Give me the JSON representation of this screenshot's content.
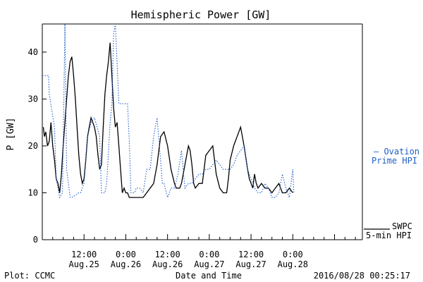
{
  "chart_data": {
    "type": "line",
    "title": "Hemispheric Power [GW]",
    "xlabel": "Date and Time",
    "ylabel": "P [GW]",
    "ylim": [
      0,
      46
    ],
    "yticks": [
      0,
      10,
      20,
      30,
      40
    ],
    "xlim_hours": [
      0,
      92
    ],
    "xticks": [
      {
        "hour": 12,
        "time": "12:00",
        "date": "Aug.25"
      },
      {
        "hour": 24,
        "time": "0:00",
        "date": "Aug.26"
      },
      {
        "hour": 36,
        "time": "12:00",
        "date": "Aug.26"
      },
      {
        "hour": 48,
        "time": "0:00",
        "date": "Aug.27"
      },
      {
        "hour": 60,
        "time": "12:00",
        "date": "Aug.27"
      },
      {
        "hour": 72,
        "time": "0:00",
        "date": "Aug.28"
      }
    ],
    "grid": false,
    "legend_placement": "right",
    "series": [
      {
        "name": "SWPC 5-min HPI",
        "style": "solid",
        "color": "#000000",
        "x": [
          0.3,
          0.6,
          1.0,
          1.5,
          2.0,
          2.5,
          3.0,
          3.5,
          4.0,
          4.5,
          5.0,
          5.5,
          6.0,
          6.5,
          7.0,
          7.5,
          8.0,
          8.5,
          9.0,
          9.5,
          10.0,
          10.5,
          11.0,
          11.5,
          12.0,
          12.5,
          13.0,
          13.5,
          14.0,
          14.5,
          15.0,
          15.5,
          16.0,
          16.5,
          17.0,
          17.5,
          18.0,
          18.5,
          19.0,
          19.5,
          20.0,
          20.5,
          21.0,
          21.5,
          22.0,
          22.5,
          23.0,
          23.5,
          24.0,
          24.5,
          25.0,
          25.5,
          26.0,
          26.5,
          27.0,
          28.0,
          29.0,
          30.0,
          31.0,
          32.0,
          33.0,
          34.0,
          35.0,
          36.0,
          37.0,
          38.0,
          38.5,
          39.0,
          39.5,
          40.0,
          40.5,
          41.0,
          41.5,
          42.0,
          42.5,
          43.0,
          43.5,
          44.0,
          45.0,
          46.0,
          47.0,
          48.0,
          49.0,
          50.0,
          51.0,
          52.0,
          53.0,
          53.5,
          54.0,
          55.0,
          56.0,
          57.0,
          58.0,
          59.0,
          59.5,
          60.0,
          60.5,
          61.0,
          61.5,
          62.0,
          63.0,
          64.0,
          65.0,
          66.0,
          67.0,
          68.0,
          68.5,
          69.0,
          70.0,
          71.0,
          72.0
        ],
        "y": [
          24,
          22,
          23,
          20,
          21,
          25,
          20,
          17,
          13,
          12,
          10,
          14,
          20,
          25,
          30,
          35,
          38,
          39,
          35,
          30,
          24,
          18,
          14,
          12,
          13,
          17,
          22,
          24,
          26,
          25,
          24,
          22,
          18,
          15,
          16,
          24,
          31,
          35,
          38,
          42,
          35,
          28,
          24,
          25,
          20,
          15,
          10,
          11,
          10,
          10,
          9,
          9,
          9,
          9,
          9,
          9,
          9,
          10,
          11,
          12,
          16,
          22,
          23,
          20,
          15,
          12,
          11,
          11,
          11,
          12,
          14,
          16,
          18,
          20,
          19,
          16,
          12,
          11,
          12,
          12,
          18,
          19,
          20,
          14,
          11,
          10,
          10,
          13,
          17,
          20,
          22,
          24,
          20,
          15,
          13,
          12,
          11,
          14,
          12,
          11,
          12,
          11,
          11,
          10,
          11,
          12,
          11,
          10,
          10,
          11,
          10
        ]
      },
      {
        "name": "Ovation Prime HPI",
        "style": "dotted",
        "color": "#1f5fc8",
        "x": [
          0,
          1.8,
          2.0,
          3.5,
          4.0,
          5.0,
          5.8,
          6.0,
          6.5,
          7.0,
          8.0,
          8.5,
          10.5,
          11.0,
          12.0,
          12.5,
          13.0,
          14.0,
          15.0,
          16.5,
          17.0,
          18.0,
          18.5,
          19.5,
          20.0,
          20.5,
          21.0,
          22.0,
          23.0,
          24.5,
          25.0,
          25.5,
          26.5,
          27.0,
          28.0,
          29.0,
          30.0,
          31.0,
          32.0,
          33.0,
          34.0,
          34.5,
          35.0,
          36.0,
          37.0,
          38.0,
          39.0,
          40.0,
          41.0,
          42.0,
          43.0,
          44.0,
          45.0,
          46.0,
          47.0,
          48.0,
          49.0,
          50.0,
          51.0,
          52.0,
          53.0,
          54.0,
          55.0,
          56.0,
          57.0,
          58.0,
          59.0,
          60.0,
          61.0,
          62.0,
          63.0,
          64.0,
          65.0,
          66.0,
          67.0,
          68.0,
          69.0,
          70.0,
          71.0,
          72.0,
          72.3
        ],
        "y": [
          35,
          35,
          31,
          24,
          13,
          9,
          10,
          20,
          46,
          15,
          9,
          9,
          10,
          10,
          12,
          17,
          22,
          25,
          26,
          22,
          10,
          10,
          12,
          25,
          29,
          44,
          46,
          29,
          29,
          29,
          21,
          10,
          10,
          11,
          11,
          10,
          15,
          15,
          22,
          26,
          17,
          12,
          12,
          9,
          11,
          11,
          14,
          19,
          11,
          12,
          12,
          13,
          14,
          14,
          15,
          15,
          16,
          17,
          16,
          15,
          15,
          15,
          16,
          18,
          19,
          20,
          15,
          13,
          11,
          10,
          10,
          12,
          11,
          9,
          9,
          10,
          14,
          11,
          9,
          15,
          10
        ]
      }
    ]
  },
  "labels": {
    "legend_ovation_line1": "— Ovation",
    "legend_ovation_line2": "Prime HPI",
    "legend_swpc_line1": "SWPC",
    "legend_swpc_line2": "5-min HPI",
    "footer_left": "Plot: CCMC",
    "footer_right": "2016/08/28 00:25:17"
  }
}
